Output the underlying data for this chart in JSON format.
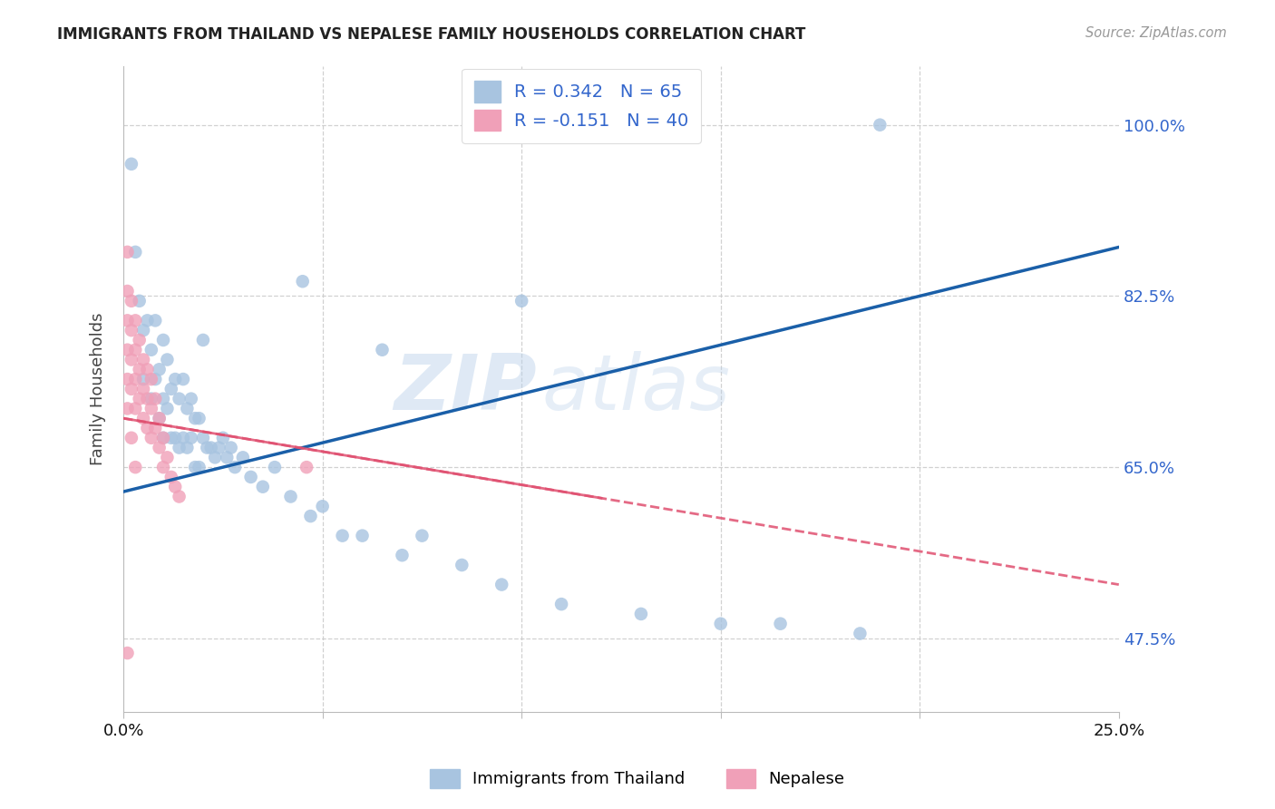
{
  "title": "IMMIGRANTS FROM THAILAND VS NEPALESE FAMILY HOUSEHOLDS CORRELATION CHART",
  "source": "Source: ZipAtlas.com",
  "ylabel": "Family Households",
  "ytick_labels": [
    "47.5%",
    "65.0%",
    "82.5%",
    "100.0%"
  ],
  "ytick_values": [
    0.475,
    0.65,
    0.825,
    1.0
  ],
  "xlim": [
    0.0,
    0.25
  ],
  "ylim": [
    0.4,
    1.06
  ],
  "color_blue": "#a8c4e0",
  "color_pink": "#f0a0b8",
  "line_blue": "#1a5fa8",
  "line_pink": "#e05070",
  "watermark_text": "ZIP",
  "watermark_text2": "atlas",
  "legend_r1": "R = 0.342",
  "legend_n1": "N = 65",
  "legend_r2": "R = -0.151",
  "legend_n2": "N = 40",
  "blue_line_x": [
    0.0,
    0.25
  ],
  "blue_line_y": [
    0.625,
    0.875
  ],
  "pink_line_x": [
    0.0,
    0.25
  ],
  "pink_line_y": [
    0.7,
    0.53
  ],
  "thai_x": [
    0.002,
    0.003,
    0.004,
    0.005,
    0.005,
    0.006,
    0.007,
    0.007,
    0.008,
    0.008,
    0.009,
    0.009,
    0.01,
    0.01,
    0.01,
    0.011,
    0.011,
    0.012,
    0.012,
    0.013,
    0.013,
    0.014,
    0.014,
    0.015,
    0.015,
    0.016,
    0.016,
    0.017,
    0.017,
    0.018,
    0.018,
    0.019,
    0.019,
    0.02,
    0.021,
    0.022,
    0.023,
    0.024,
    0.025,
    0.026,
    0.027,
    0.028,
    0.03,
    0.032,
    0.035,
    0.038,
    0.042,
    0.047,
    0.05,
    0.055,
    0.06,
    0.07,
    0.075,
    0.085,
    0.095,
    0.11,
    0.13,
    0.15,
    0.165,
    0.185,
    0.02,
    0.045,
    0.065,
    0.1,
    0.19
  ],
  "thai_y": [
    0.96,
    0.87,
    0.82,
    0.79,
    0.74,
    0.8,
    0.77,
    0.72,
    0.8,
    0.74,
    0.75,
    0.7,
    0.78,
    0.72,
    0.68,
    0.76,
    0.71,
    0.73,
    0.68,
    0.74,
    0.68,
    0.72,
    0.67,
    0.74,
    0.68,
    0.71,
    0.67,
    0.72,
    0.68,
    0.7,
    0.65,
    0.7,
    0.65,
    0.68,
    0.67,
    0.67,
    0.66,
    0.67,
    0.68,
    0.66,
    0.67,
    0.65,
    0.66,
    0.64,
    0.63,
    0.65,
    0.62,
    0.6,
    0.61,
    0.58,
    0.58,
    0.56,
    0.58,
    0.55,
    0.53,
    0.51,
    0.5,
    0.49,
    0.49,
    0.48,
    0.78,
    0.84,
    0.77,
    0.82,
    1.0
  ],
  "nep_x": [
    0.001,
    0.001,
    0.001,
    0.001,
    0.001,
    0.001,
    0.002,
    0.002,
    0.002,
    0.002,
    0.003,
    0.003,
    0.003,
    0.003,
    0.004,
    0.004,
    0.004,
    0.005,
    0.005,
    0.005,
    0.006,
    0.006,
    0.006,
    0.007,
    0.007,
    0.007,
    0.008,
    0.008,
    0.009,
    0.009,
    0.01,
    0.01,
    0.011,
    0.012,
    0.013,
    0.014,
    0.001,
    0.002,
    0.003,
    0.046
  ],
  "nep_y": [
    0.87,
    0.83,
    0.8,
    0.77,
    0.74,
    0.71,
    0.82,
    0.79,
    0.76,
    0.73,
    0.8,
    0.77,
    0.74,
    0.71,
    0.78,
    0.75,
    0.72,
    0.76,
    0.73,
    0.7,
    0.75,
    0.72,
    0.69,
    0.74,
    0.71,
    0.68,
    0.72,
    0.69,
    0.7,
    0.67,
    0.68,
    0.65,
    0.66,
    0.64,
    0.63,
    0.62,
    0.46,
    0.68,
    0.65,
    0.65
  ]
}
